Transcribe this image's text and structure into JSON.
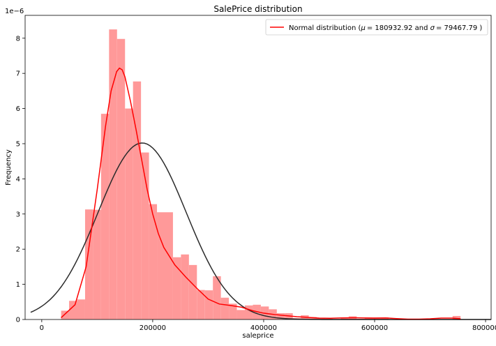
{
  "chart_data": {
    "type": "bar",
    "title": "SalePrice distribution",
    "xlabel": "saleprice",
    "ylabel": "Frequency",
    "y_multiplier_label": "1e−6",
    "xlim": [
      -30000,
      810000
    ],
    "ylim": [
      0,
      8.65
    ],
    "x_ticks": [
      0,
      200000,
      400000,
      600000,
      800000
    ],
    "x_tick_labels": [
      "0",
      "200000",
      "400000",
      "600000",
      "800000"
    ],
    "y_ticks": [
      0,
      1,
      2,
      3,
      4,
      5,
      6,
      7,
      8
    ],
    "y_tick_labels": [
      "0",
      "1",
      "2",
      "3",
      "4",
      "5",
      "6",
      "7",
      "8"
    ],
    "bar_color": "#ff9999",
    "histogram": {
      "bin_edges": [
        34900,
        49300,
        63700,
        78100,
        92500,
        106900,
        121300,
        135700,
        150100,
        164500,
        178900,
        193300,
        207700,
        222100,
        236500,
        250900,
        265300,
        279700,
        294100,
        308500,
        322900,
        337300,
        351700,
        366100,
        380500,
        394900,
        409300,
        423700,
        438100,
        452500,
        466900,
        481300,
        495700,
        510100,
        524500,
        538900,
        553300,
        567700,
        582100,
        596500,
        610900,
        625300,
        639700,
        654100,
        668500,
        682900,
        697300,
        711700,
        726100,
        740500,
        754900
      ],
      "density_e6": [
        0.25,
        0.53,
        0.57,
        3.13,
        3.12,
        5.85,
        8.25,
        7.98,
        6.0,
        6.77,
        4.75,
        3.28,
        3.05,
        3.05,
        1.77,
        1.85,
        1.55,
        0.84,
        0.83,
        1.23,
        0.62,
        0.45,
        0.27,
        0.4,
        0.42,
        0.37,
        0.29,
        0.18,
        0.18,
        0.04,
        0.12,
        0.07,
        0.04,
        0.02,
        0.0,
        0.05,
        0.09,
        0.02,
        0.06,
        0.06,
        0.06,
        0.01,
        0.0,
        0.0,
        0.0,
        0.0,
        0.0,
        0.0,
        0.0,
        0.1
      ]
    },
    "series": [
      {
        "name": "Normal distribution (μ = 180932.92 and σ = 79467.79 )",
        "kind": "normal-fit",
        "color": "#2b2b2b",
        "mu": 180932.92,
        "sigma": 79467.79
      },
      {
        "kind": "kde",
        "color": "#ff0000",
        "x": [
          34900,
          60000,
          80000,
          100000,
          115000,
          125000,
          135000,
          140000,
          145000,
          150000,
          160000,
          170000,
          180000,
          190000,
          200000,
          210000,
          220000,
          240000,
          260000,
          280000,
          300000,
          320000,
          340000,
          360000,
          380000,
          400000,
          420000,
          440000,
          460000,
          480000,
          500000,
          520000,
          540000,
          560000,
          580000,
          600000,
          620000,
          640000,
          660000,
          680000,
          700000,
          720000,
          740000,
          755000
        ],
        "y": [
          0.05,
          0.42,
          1.5,
          3.7,
          5.5,
          6.5,
          7.05,
          7.15,
          7.1,
          6.9,
          6.2,
          5.4,
          4.55,
          3.7,
          3.0,
          2.45,
          2.05,
          1.55,
          1.2,
          0.88,
          0.58,
          0.44,
          0.4,
          0.35,
          0.25,
          0.18,
          0.14,
          0.11,
          0.08,
          0.06,
          0.04,
          0.035,
          0.045,
          0.05,
          0.045,
          0.04,
          0.045,
          0.025,
          0.01,
          0.01,
          0.02,
          0.04,
          0.04,
          0.02
        ]
      }
    ],
    "legend": {
      "placement": "top-right",
      "items": [
        {
          "label": "Normal distribution ($\\mu=$ 180932.92 and $\\sigma=$ 79467.79 )",
          "prefix": "Normal distribution (",
          "mu_symbol": "μ",
          "eq1": "= ",
          "mu_value": "180932.92",
          "mid": " and ",
          "sigma_symbol": "σ",
          "eq2": "= ",
          "sigma_value": "79467.79",
          "suffix": " )",
          "color": "#ff0000"
        }
      ]
    }
  }
}
